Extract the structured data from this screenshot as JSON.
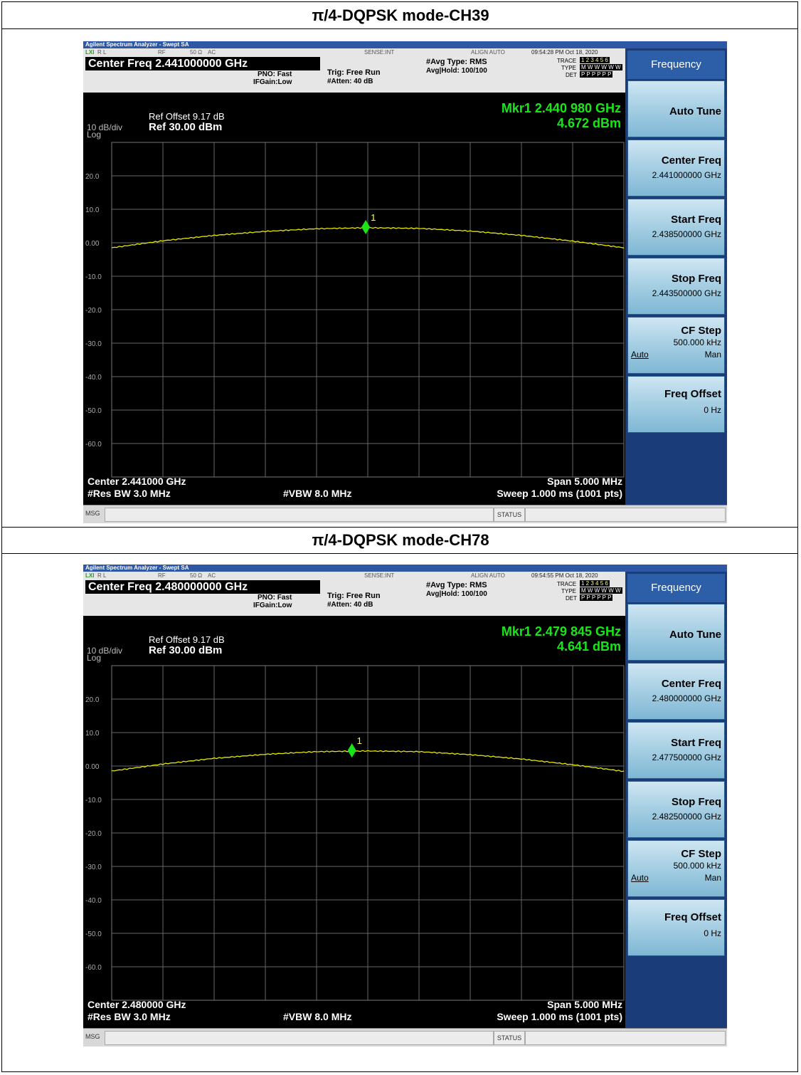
{
  "sections": [
    {
      "title": "π/4-DQPSK mode-CH39",
      "analyzer": {
        "window_title": "Agilent Spectrum Analyzer - Swept SA",
        "ctrl": {
          "rl": "R L",
          "rf": "RF",
          "ohm": "50 Ω",
          "ac": "AC",
          "sense": "SENSE:INT",
          "align": "ALIGN AUTO",
          "datetime": "09:54:28 PM Oct 18, 2020"
        },
        "center_freq_label": "Center Freq 2.441000000 GHz",
        "pno": "PNO: Fast",
        "ifgain": "IFGain:Low",
        "trig": "Trig: Free Run",
        "atten": "#Atten: 40 dB",
        "avg_type": "#Avg Type: RMS",
        "avg_hold": "Avg|Hold: 100/100",
        "trace_label": "TRACE",
        "type_label": "TYPE",
        "det_label": "DET",
        "trace_nums": "1 2 3 4 5 6",
        "type_vals": "M W W W W W",
        "det_vals": "P P P P P P",
        "ref_offset": "Ref Offset 9.17 dB",
        "ref_level": "Ref 30.00 dBm",
        "scale": "10 dB/div",
        "log": "Log",
        "marker_freq": "Mkr1 2.440 980 GHz",
        "marker_level": "4.672 dBm",
        "marker_num": "1",
        "footer": {
          "center": "Center 2.441000 GHz",
          "rbw": "#Res BW 3.0 MHz",
          "vbw": "#VBW 8.0 MHz",
          "span": "Span 5.000 MHz",
          "sweep": "Sweep  1.000 ms (1001 pts)"
        },
        "status": {
          "msg": "MSG",
          "status": "STATUS"
        },
        "softkeys": {
          "header": "Frequency",
          "auto_tune": "Auto Tune",
          "center_freq": "Center Freq",
          "center_freq_val": "2.441000000 GHz",
          "start_freq": "Start Freq",
          "start_freq_val": "2.438500000 GHz",
          "stop_freq": "Stop Freq",
          "stop_freq_val": "2.443500000 GHz",
          "cf_step": "CF Step",
          "cf_step_val": "500.000 kHz",
          "auto": "Auto",
          "man": "Man",
          "freq_offset": "Freq Offset",
          "freq_offset_val": "0 Hz"
        },
        "y_ticks": [
          "20.0",
          "10.0",
          "0.00",
          "-10.0",
          "-20.0",
          "-30.0",
          "-40.0",
          "-50.0",
          "-60.0"
        ],
        "trace_data": {
          "x_mhz": [
            -2.5,
            -2.0,
            -1.5,
            -1.0,
            -0.5,
            0.0,
            0.5,
            1.0,
            1.5,
            2.0,
            2.5
          ],
          "y_dbm": [
            -1.5,
            0.6,
            2.2,
            3.4,
            4.2,
            4.5,
            4.3,
            3.5,
            2.2,
            0.5,
            -1.5
          ],
          "marker_x_mhz": -0.02,
          "marker_y_dbm": 4.672
        }
      }
    },
    {
      "title": "π/4-DQPSK mode-CH78",
      "analyzer": {
        "window_title": "Agilent Spectrum Analyzer - Swept SA",
        "ctrl": {
          "rl": "R L",
          "rf": "RF",
          "ohm": "50 Ω",
          "ac": "AC",
          "sense": "SENSE:INT",
          "align": "ALIGN AUTO",
          "datetime": "09:54:55 PM Oct 18, 2020"
        },
        "center_freq_label": "Center Freq 2.480000000 GHz",
        "pno": "PNO: Fast",
        "ifgain": "IFGain:Low",
        "trig": "Trig: Free Run",
        "atten": "#Atten: 40 dB",
        "avg_type": "#Avg Type: RMS",
        "avg_hold": "Avg|Hold: 100/100",
        "trace_label": "TRACE",
        "type_label": "TYPE",
        "det_label": "DET",
        "trace_nums": "1 2 3 4 5 6",
        "type_vals": "M W W W W W",
        "det_vals": "P P P P P P",
        "ref_offset": "Ref Offset 9.17 dB",
        "ref_level": "Ref 30.00 dBm",
        "scale": "10 dB/div",
        "log": "Log",
        "marker_freq": "Mkr1 2.479 845 GHz",
        "marker_level": "4.641 dBm",
        "marker_num": "1",
        "footer": {
          "center": "Center 2.480000 GHz",
          "rbw": "#Res BW 3.0 MHz",
          "vbw": "#VBW 8.0 MHz",
          "span": "Span 5.000 MHz",
          "sweep": "Sweep  1.000 ms (1001 pts)"
        },
        "status": {
          "msg": "MSG",
          "status": "STATUS"
        },
        "softkeys": {
          "header": "Frequency",
          "auto_tune": "Auto Tune",
          "center_freq": "Center Freq",
          "center_freq_val": "2.480000000 GHz",
          "start_freq": "Start Freq",
          "start_freq_val": "2.477500000 GHz",
          "stop_freq": "Stop Freq",
          "stop_freq_val": "2.482500000 GHz",
          "cf_step": "CF Step",
          "cf_step_val": "500.000 kHz",
          "auto": "Auto",
          "man": "Man",
          "freq_offset": "Freq Offset",
          "freq_offset_val": "0 Hz"
        },
        "y_ticks": [
          "20.0",
          "10.0",
          "0.00",
          "-10.0",
          "-20.0",
          "-30.0",
          "-40.0",
          "-50.0",
          "-60.0"
        ],
        "trace_data": {
          "x_mhz": [
            -2.5,
            -2.0,
            -1.5,
            -1.0,
            -0.5,
            0.0,
            0.5,
            1.0,
            1.5,
            2.0,
            2.5
          ],
          "y_dbm": [
            -1.5,
            0.6,
            2.3,
            3.5,
            4.3,
            4.5,
            4.3,
            3.4,
            2.1,
            0.4,
            -1.6
          ],
          "marker_x_mhz": -0.155,
          "marker_y_dbm": 4.641
        }
      }
    }
  ],
  "colors": {
    "trace": "#e8e800",
    "marker": "#19e619",
    "grid": "#ffffff",
    "softkey_bg": "#1a3d7a",
    "titlebar": "#2e58a6"
  }
}
